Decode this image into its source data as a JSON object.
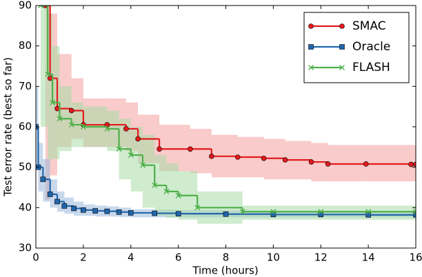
{
  "chart_data": {
    "type": "step-line",
    "xlabel": "Time (hours)",
    "ylabel": "Test error rate (best so far)",
    "xlim": [
      0,
      16
    ],
    "xticks": [
      0,
      2,
      4,
      6,
      8,
      10,
      12,
      14,
      16
    ],
    "ylim": [
      30,
      90
    ],
    "yticks": [
      30,
      40,
      50,
      60,
      70,
      80,
      90
    ],
    "legend": "upper right",
    "series": [
      {
        "name": "SMAC",
        "color": "#e31a1c",
        "band_color": "#f4a0a0",
        "marker": "circle",
        "x": [
          0.4,
          0.6,
          0.9,
          1.5,
          2.0,
          3.0,
          3.8,
          4.3,
          5.2,
          6.5,
          7.4,
          8.5,
          9.6,
          10.5,
          11.6,
          12.3,
          13.9,
          15.8,
          16
        ],
        "values": [
          90,
          72,
          64.5,
          64,
          60.5,
          60.5,
          59.5,
          57,
          54.5,
          54.5,
          52.7,
          52.5,
          52.2,
          51.8,
          51.3,
          50.8,
          50.8,
          50.7,
          50.7
        ],
        "lower": [
          42,
          48,
          55,
          57,
          55,
          55,
          54,
          51,
          49,
          48.5,
          47.5,
          47.5,
          47,
          47,
          46.5,
          46.5,
          46.5,
          46.5,
          46.5
        ],
        "upper": [
          90,
          88,
          78,
          72,
          67,
          67,
          66,
          63,
          60.5,
          59.5,
          58,
          57.5,
          57,
          56.5,
          56,
          55.5,
          55.5,
          55.5,
          55.5
        ]
      },
      {
        "name": "Oracle",
        "color": "#2166ac",
        "band_color": "#9ab8dd",
        "marker": "square",
        "x": [
          0,
          0.1,
          0.3,
          0.6,
          0.9,
          1.2,
          1.6,
          2.0,
          2.5,
          3.0,
          3.5,
          4.0,
          5.0,
          6.0,
          8.0,
          10,
          12,
          14,
          16
        ],
        "values": [
          60,
          50,
          47,
          43.3,
          41.5,
          40.4,
          39.8,
          39.4,
          39.2,
          39.1,
          38.9,
          38.7,
          38.6,
          38.5,
          38.4,
          38.3,
          38.3,
          38.2,
          38.2
        ],
        "lower": [
          50,
          44,
          41.5,
          40,
          39,
          38.5,
          38,
          38,
          37.8,
          37.8,
          37.7,
          37.6,
          37.6,
          37.6,
          37.6,
          37.6,
          37.6,
          37.6,
          37.6
        ],
        "upper": [
          70,
          56,
          52,
          47,
          44,
          42.5,
          41.5,
          40.8,
          40.5,
          40.3,
          40,
          39.6,
          39.5,
          39.4,
          39.3,
          39.2,
          39.1,
          39.1,
          39.1
        ]
      },
      {
        "name": "FLASH",
        "color": "#4daf4a",
        "band_color": "#a8dca6",
        "marker": "x",
        "x": [
          0.2,
          0.5,
          0.7,
          1.0,
          1.5,
          2.0,
          3.0,
          3.5,
          4.0,
          4.5,
          5.0,
          5.5,
          6.0,
          6.8,
          8.7,
          10,
          12,
          14,
          16
        ],
        "values": [
          90,
          73,
          66,
          62,
          60.5,
          60,
          59.5,
          54.5,
          53,
          50.5,
          45.5,
          44,
          43,
          40,
          39,
          39,
          39,
          39,
          39
        ],
        "lower": [
          60,
          52,
          52,
          54,
          55,
          55,
          54,
          47,
          44,
          40,
          38,
          37.5,
          37,
          36,
          37,
          37,
          37,
          37,
          37
        ],
        "upper": [
          90,
          88,
          80,
          70,
          66,
          65,
          64,
          62,
          60,
          58,
          53,
          51,
          49,
          44,
          40.5,
          40.5,
          40.5,
          40.5,
          40.5
        ]
      }
    ]
  }
}
